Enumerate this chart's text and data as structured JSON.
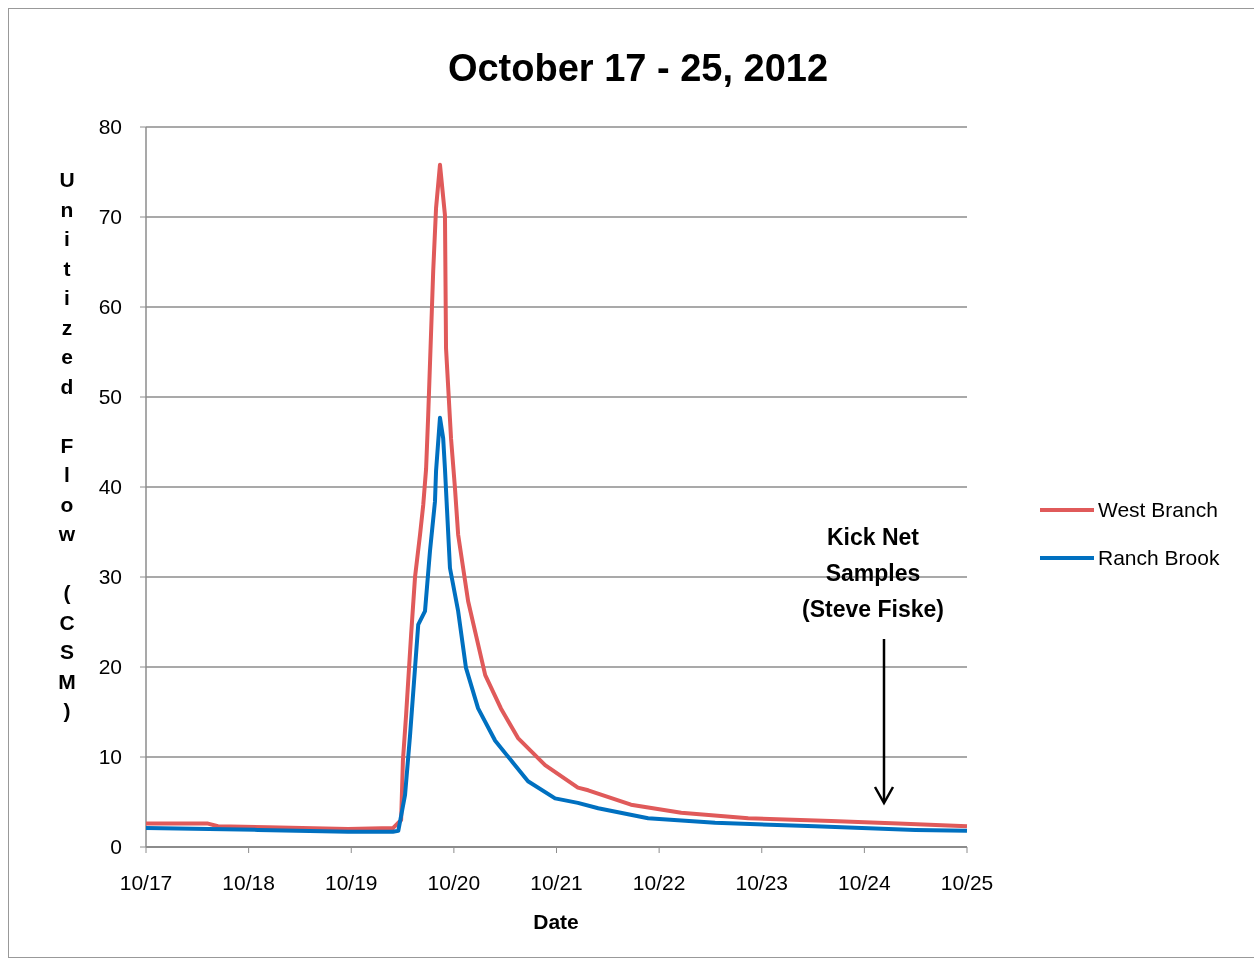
{
  "chart_data": {
    "type": "line",
    "title": "October 17 - 25, 2012",
    "xlabel": "Date",
    "ylabel": "Unitized Flow (CSM)",
    "ylim": [
      0,
      80
    ],
    "yticks": [
      0,
      10,
      20,
      30,
      40,
      50,
      60,
      70,
      80
    ],
    "xlim": [
      "2012-10-17",
      "2012-10-25"
    ],
    "xticks": [
      {
        "value": "2012-10-17",
        "label": "10/17"
      },
      {
        "value": "2012-10-18",
        "label": "10/18"
      },
      {
        "value": "2012-10-19",
        "label": "10/19"
      },
      {
        "value": "2012-10-20",
        "label": "10/20"
      },
      {
        "value": "2012-10-21",
        "label": "10/21"
      },
      {
        "value": "2012-10-22",
        "label": "10/22"
      },
      {
        "value": "2012-10-23",
        "label": "10/23"
      },
      {
        "value": "2012-10-24",
        "label": "10/24"
      },
      {
        "value": "2012-10-25",
        "label": "10/25"
      }
    ],
    "grid": "y",
    "legend": "right",
    "marker": "none",
    "line_style": "solid",
    "annotations": [
      "Kick Net\nSamples\n(Steve Fiske)"
    ],
    "series": [
      {
        "name": "West Branch",
        "color": "#e05a5a",
        "x": [
          "2012-10-17T00:00",
          "2012-10-17T14:30",
          "2012-10-17T16:50",
          "2012-10-18T04:30",
          "2012-10-18T23:15",
          "2012-10-19T09:45",
          "2012-10-19T11:40",
          "2012-10-19T12:05",
          "2012-10-19T12:50",
          "2012-10-19T14:00",
          "2012-10-19T14:55",
          "2012-10-19T16:05",
          "2012-10-19T16:50",
          "2012-10-19T17:30",
          "2012-10-19T18:00",
          "2012-10-19T19:10",
          "2012-10-19T19:50",
          "2012-10-19T20:45",
          "2012-10-19T21:55",
          "2012-10-19T22:10",
          "2012-10-19T23:20",
          "2012-10-20T00:15",
          "2012-10-20T01:00",
          "2012-10-20T03:20",
          "2012-10-20T07:20",
          "2012-10-20T11:00",
          "2012-10-20T15:00",
          "2012-10-20T21:20",
          "2012-10-21T05:00",
          "2012-10-21T07:25",
          "2012-10-21T17:25",
          "2012-10-22T05:10",
          "2012-10-22T20:50",
          "2012-10-23T16:15",
          "2012-10-24T07:55",
          "2012-10-25T00:00"
        ],
        "values": [
          2.6,
          2.6,
          2.3,
          2.2,
          2.0,
          2.1,
          3.0,
          9.6,
          14.7,
          23.6,
          30,
          34.7,
          38,
          42,
          48,
          64,
          71,
          75.8,
          70.2,
          55.4,
          45.4,
          39.9,
          34.7,
          27.3,
          19.1,
          15.4,
          12.1,
          9.1,
          6.6,
          6.3,
          4.7,
          3.8,
          3.2,
          2.9,
          2.6,
          2.3
        ]
      },
      {
        "name": "Ranch Brook",
        "color": "#0070c0",
        "x": [
          "2012-10-17T00:00",
          "2012-10-18T02:10",
          "2012-10-18T23:15",
          "2012-10-19T09:45",
          "2012-10-19T11:00",
          "2012-10-19T12:35",
          "2012-10-19T13:45",
          "2012-10-19T14:55",
          "2012-10-19T15:40",
          "2012-10-19T17:15",
          "2012-10-19T18:25",
          "2012-10-19T19:35",
          "2012-10-19T19:50",
          "2012-10-19T20:45",
          "2012-10-19T21:30",
          "2012-10-19T21:55",
          "2012-10-19T23:05",
          "2012-10-20T01:00",
          "2012-10-20T02:50",
          "2012-10-20T05:40",
          "2012-10-20T09:40",
          "2012-10-20T13:25",
          "2012-10-20T17:20",
          "2012-10-20T23:40",
          "2012-10-21T05:00",
          "2012-10-21T09:45",
          "2012-10-21T21:25",
          "2012-10-22T13:05",
          "2012-10-23T12:30",
          "2012-10-24T11:55",
          "2012-10-25T00:00"
        ],
        "values": [
          2.1,
          1.9,
          1.7,
          1.7,
          1.8,
          5.8,
          12.4,
          19.9,
          24.7,
          26.2,
          32.9,
          38.4,
          41.8,
          47.7,
          45.4,
          42,
          31,
          26.2,
          19.9,
          15.4,
          11.8,
          9.6,
          7.3,
          5.4,
          4.9,
          4.3,
          3.2,
          2.7,
          2.3,
          1.9,
          1.8
        ]
      }
    ]
  }
}
